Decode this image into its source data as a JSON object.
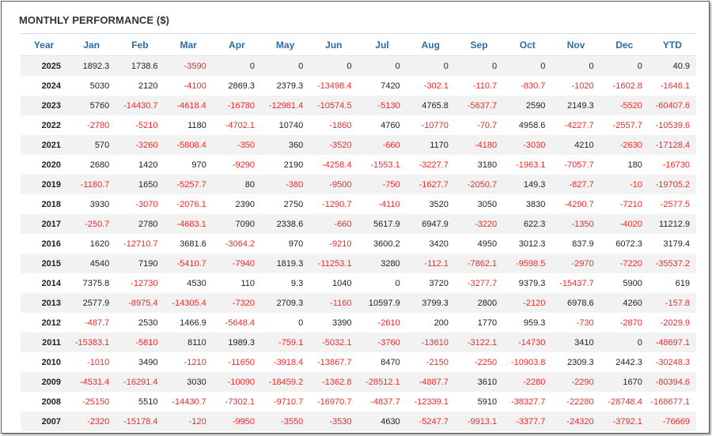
{
  "title": "MONTHLY PERFORMANCE ($)",
  "colors": {
    "header": "#2e6da4",
    "negative": "#ee2a2a",
    "positive": "#222222",
    "alt_row": "#f2f2f2"
  },
  "columns": [
    "Year",
    "Jan",
    "Feb",
    "Mar",
    "Apr",
    "May",
    "Jun",
    "Jul",
    "Aug",
    "Sep",
    "Oct",
    "Nov",
    "Dec",
    "YTD"
  ],
  "rows": [
    [
      "2025",
      "1892.3",
      "1738.6",
      "-3590",
      "0",
      "0",
      "0",
      "0",
      "0",
      "0",
      "0",
      "0",
      "0",
      "40.9"
    ],
    [
      "2024",
      "5030",
      "2120",
      "-4100",
      "2869.3",
      "2379.3",
      "-13498.4",
      "7420",
      "-302.1",
      "-110.7",
      "-830.7",
      "-1020",
      "-1602.8",
      "-1646.1"
    ],
    [
      "2023",
      "5760",
      "-14430.7",
      "-4618.4",
      "-16780",
      "-12981.4",
      "-10574.5",
      "-5130",
      "4765.8",
      "-5637.7",
      "2590",
      "2149.3",
      "-5520",
      "-60407.6"
    ],
    [
      "2022",
      "-2780",
      "-5210",
      "1180",
      "-4702.1",
      "10740",
      "-1860",
      "4760",
      "-10770",
      "-70.7",
      "4958.6",
      "-4227.7",
      "-2557.7",
      "-10539.6"
    ],
    [
      "2021",
      "570",
      "-3260",
      "-5808.4",
      "-350",
      "360",
      "-3520",
      "-660",
      "1170",
      "-4180",
      "-3030",
      "4210",
      "-2630",
      "-17128.4"
    ],
    [
      "2020",
      "2680",
      "1420",
      "970",
      "-9290",
      "2190",
      "-4258.4",
      "-1553.1",
      "-3227.7",
      "3180",
      "-1963.1",
      "-7057.7",
      "180",
      "-16730"
    ],
    [
      "2019",
      "-1180.7",
      "1650",
      "-5257.7",
      "80",
      "-380",
      "-9500",
      "-750",
      "-1627.7",
      "-2050.7",
      "149.3",
      "-827.7",
      "-10",
      "-19705.2"
    ],
    [
      "2018",
      "3930",
      "-3070",
      "-2076.1",
      "2390",
      "2750",
      "-1290.7",
      "-4110",
      "3520",
      "3050",
      "3830",
      "-4290.7",
      "-7210",
      "-2577.5"
    ],
    [
      "2017",
      "-250.7",
      "2780",
      "-4683.1",
      "7090",
      "2338.6",
      "-660",
      "5617.9",
      "6947.9",
      "-3220",
      "622.3",
      "-1350",
      "-4020",
      "11212.9"
    ],
    [
      "2016",
      "1620",
      "-12710.7",
      "3681.6",
      "-3064.2",
      "970",
      "-9210",
      "3600.2",
      "3420",
      "4950",
      "3012.3",
      "837.9",
      "6072.3",
      "3179.4"
    ],
    [
      "2015",
      "4540",
      "7190",
      "-5410.7",
      "-7940",
      "1819.3",
      "-11253.1",
      "3280",
      "-112.1",
      "-7862.1",
      "-9598.5",
      "-2970",
      "-7220",
      "-35537.2"
    ],
    [
      "2014",
      "7375.8",
      "-12730",
      "4530",
      "110",
      "9.3",
      "1040",
      "0",
      "3720",
      "-3277.7",
      "9379.3",
      "-15437.7",
      "5900",
      "619"
    ],
    [
      "2013",
      "2577.9",
      "-8975.4",
      "-14305.4",
      "-7320",
      "2709.3",
      "-1160",
      "10597.9",
      "3799.3",
      "2800",
      "-2120",
      "6978.6",
      "4260",
      "-157.8"
    ],
    [
      "2012",
      "-487.7",
      "2530",
      "1466.9",
      "-5648.4",
      "0",
      "3390",
      "-2610",
      "200",
      "1770",
      "959.3",
      "-730",
      "-2870",
      "-2029.9"
    ],
    [
      "2011",
      "-15383.1",
      "-5810",
      "8110",
      "1989.3",
      "-759.1",
      "-5032.1",
      "-3760",
      "-13610",
      "-3122.1",
      "-14730",
      "3410",
      "0",
      "-48697.1"
    ],
    [
      "2010",
      "-1010",
      "3490",
      "-1210",
      "-11650",
      "-3918.4",
      "-13867.7",
      "8470",
      "-2150",
      "-2250",
      "-10903.8",
      "2309.3",
      "2442.3",
      "-30248.3"
    ],
    [
      "2009",
      "-4531.4",
      "-16291.4",
      "3030",
      "-10090",
      "-18459.2",
      "-1362.8",
      "-28512.1",
      "-4887.7",
      "3610",
      "-2280",
      "-2290",
      "1670",
      "-80394.6"
    ],
    [
      "2008",
      "-25150",
      "5510",
      "-14430.7",
      "-7302.1",
      "-9710.7",
      "-16970.7",
      "-4837.7",
      "-12339.1",
      "5910",
      "-38327.7",
      "-22280",
      "-28748.4",
      "-168677.1"
    ],
    [
      "2007",
      "-2320",
      "-15178.4",
      "-120",
      "-9950",
      "-3550",
      "-3530",
      "4630",
      "-5247.7",
      "-9913.1",
      "-3377.7",
      "-24320",
      "-3792.1",
      "-76669"
    ]
  ]
}
